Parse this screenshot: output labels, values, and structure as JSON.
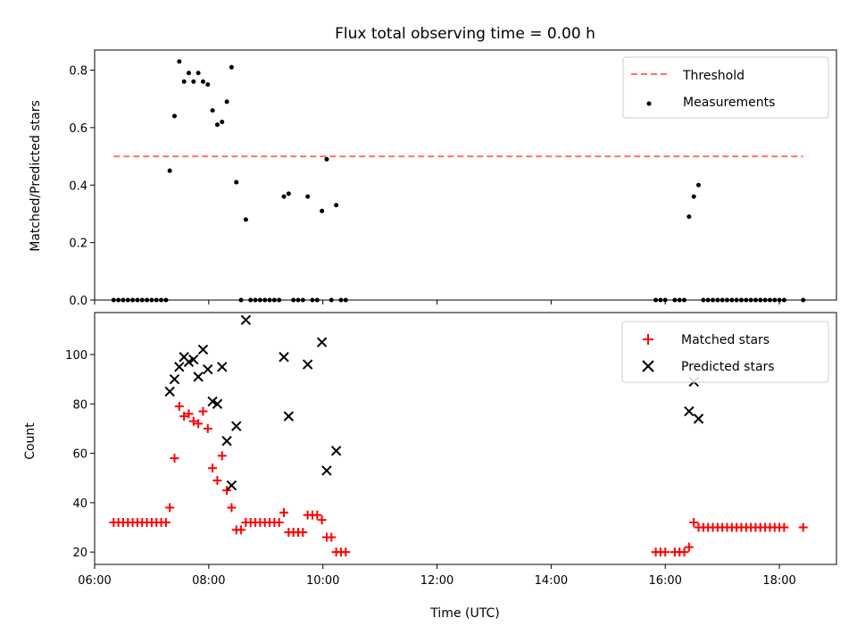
{
  "chart_data": [
    {
      "type": "scatter",
      "title": "Flux total observing time = 0.00 h",
      "xlabel": "",
      "ylabel": "Matched/Predicted stars",
      "xlim": [
        "06:00",
        "19:00"
      ],
      "ylim": [
        0,
        0.87
      ],
      "yticks": [
        "0.0",
        "0.2",
        "0.4",
        "0.6",
        "0.8"
      ],
      "yticks_values": [
        0,
        0.2,
        0.4,
        0.6,
        0.8
      ],
      "xticks_values": [
        "06:00",
        "08:00",
        "10:00",
        "12:00",
        "14:00",
        "16:00",
        "18:00"
      ],
      "legend_position": "top-right",
      "threshold": {
        "name": "Threshold",
        "value": 0.5,
        "x": [
          "06:20",
          "18:25"
        ],
        "color": "#ff7070"
      },
      "series": [
        {
          "name": "Measurements",
          "color": "#000000",
          "points": [
            [
              "06:20",
              0
            ],
            [
              "06:25",
              0
            ],
            [
              "06:30",
              0
            ],
            [
              "06:35",
              0
            ],
            [
              "06:40",
              0
            ],
            [
              "06:45",
              0
            ],
            [
              "06:50",
              0
            ],
            [
              "06:55",
              0
            ],
            [
              "07:00",
              0
            ],
            [
              "07:05",
              0
            ],
            [
              "07:10",
              0
            ],
            [
              "07:15",
              0
            ],
            [
              "07:19",
              0.45
            ],
            [
              "07:24",
              0.64
            ],
            [
              "07:29",
              0.83
            ],
            [
              "07:34",
              0.76
            ],
            [
              "07:39",
              0.79
            ],
            [
              "07:44",
              0.76
            ],
            [
              "07:49",
              0.79
            ],
            [
              "07:54",
              0.76
            ],
            [
              "07:59",
              0.75
            ],
            [
              "08:04",
              0.66
            ],
            [
              "08:09",
              0.61
            ],
            [
              "08:14",
              0.62
            ],
            [
              "08:19",
              0.69
            ],
            [
              "08:24",
              0.81
            ],
            [
              "08:29",
              0.41
            ],
            [
              "08:34",
              0
            ],
            [
              "08:39",
              0.28
            ],
            [
              "08:44",
              0
            ],
            [
              "08:49",
              0
            ],
            [
              "08:54",
              0
            ],
            [
              "08:59",
              0
            ],
            [
              "09:04",
              0
            ],
            [
              "09:09",
              0
            ],
            [
              "09:14",
              0
            ],
            [
              "09:19",
              0.36
            ],
            [
              "09:24",
              0.37
            ],
            [
              "09:29",
              0
            ],
            [
              "09:34",
              0
            ],
            [
              "09:39",
              0
            ],
            [
              "09:44",
              0.36
            ],
            [
              "09:49",
              0
            ],
            [
              "09:54",
              0
            ],
            [
              "09:59",
              0.31
            ],
            [
              "10:04",
              0.49
            ],
            [
              "10:09",
              0
            ],
            [
              "10:14",
              0.33
            ],
            [
              "10:19",
              0
            ],
            [
              "10:24",
              0
            ],
            [
              "15:50",
              0
            ],
            [
              "15:55",
              0
            ],
            [
              "16:00",
              0
            ],
            [
              "16:10",
              0
            ],
            [
              "16:15",
              0
            ],
            [
              "16:20",
              0
            ],
            [
              "16:25",
              0.29
            ],
            [
              "16:30",
              0.36
            ],
            [
              "16:35",
              0.4
            ],
            [
              "16:40",
              0
            ],
            [
              "16:45",
              0
            ],
            [
              "16:50",
              0
            ],
            [
              "16:55",
              0
            ],
            [
              "17:00",
              0
            ],
            [
              "17:05",
              0
            ],
            [
              "17:10",
              0
            ],
            [
              "17:15",
              0
            ],
            [
              "17:20",
              0
            ],
            [
              "17:25",
              0
            ],
            [
              "17:30",
              0
            ],
            [
              "17:35",
              0
            ],
            [
              "17:40",
              0
            ],
            [
              "17:45",
              0
            ],
            [
              "17:50",
              0
            ],
            [
              "17:55",
              0
            ],
            [
              "18:00",
              0
            ],
            [
              "18:05",
              0
            ],
            [
              "18:25",
              0
            ]
          ]
        }
      ]
    },
    {
      "type": "scatter",
      "title": "",
      "xlabel": "Time (UTC)",
      "ylabel": "Count",
      "xlim": [
        "06:00",
        "19:00"
      ],
      "ylim": [
        15,
        117
      ],
      "yticks": [
        "20",
        "40",
        "60",
        "80",
        "100"
      ],
      "yticks_values": [
        20,
        40,
        60,
        80,
        100
      ],
      "xticks": [
        "06:00",
        "08:00",
        "10:00",
        "12:00",
        "14:00",
        "16:00",
        "18:00"
      ],
      "legend_position": "top-right",
      "series": [
        {
          "name": "Matched stars",
          "marker": "+",
          "color": "#ff0000",
          "points": [
            [
              "06:20",
              32
            ],
            [
              "06:25",
              32
            ],
            [
              "06:30",
              32
            ],
            [
              "06:35",
              32
            ],
            [
              "06:40",
              32
            ],
            [
              "06:45",
              32
            ],
            [
              "06:50",
              32
            ],
            [
              "06:55",
              32
            ],
            [
              "07:00",
              32
            ],
            [
              "07:05",
              32
            ],
            [
              "07:10",
              32
            ],
            [
              "07:15",
              32
            ],
            [
              "07:19",
              38
            ],
            [
              "07:24",
              58
            ],
            [
              "07:29",
              79
            ],
            [
              "07:34",
              75
            ],
            [
              "07:39",
              76
            ],
            [
              "07:44",
              73
            ],
            [
              "07:49",
              72
            ],
            [
              "07:54",
              77
            ],
            [
              "07:59",
              70
            ],
            [
              "08:04",
              54
            ],
            [
              "08:09",
              49
            ],
            [
              "08:14",
              59
            ],
            [
              "08:19",
              45
            ],
            [
              "08:24",
              38
            ],
            [
              "08:29",
              29
            ],
            [
              "08:34",
              29
            ],
            [
              "08:39",
              32
            ],
            [
              "08:44",
              32
            ],
            [
              "08:49",
              32
            ],
            [
              "08:54",
              32
            ],
            [
              "08:59",
              32
            ],
            [
              "09:04",
              32
            ],
            [
              "09:09",
              32
            ],
            [
              "09:14",
              32
            ],
            [
              "09:19",
              36
            ],
            [
              "09:24",
              28
            ],
            [
              "09:29",
              28
            ],
            [
              "09:34",
              28
            ],
            [
              "09:39",
              28
            ],
            [
              "09:44",
              35
            ],
            [
              "09:49",
              35
            ],
            [
              "09:54",
              35
            ],
            [
              "09:59",
              33
            ],
            [
              "10:04",
              26
            ],
            [
              "10:09",
              26
            ],
            [
              "10:14",
              20
            ],
            [
              "10:19",
              20
            ],
            [
              "10:24",
              20
            ],
            [
              "15:50",
              20
            ],
            [
              "15:55",
              20
            ],
            [
              "16:00",
              20
            ],
            [
              "16:10",
              20
            ],
            [
              "16:15",
              20
            ],
            [
              "16:20",
              20
            ],
            [
              "16:25",
              22
            ],
            [
              "16:30",
              32
            ],
            [
              "16:35",
              30
            ],
            [
              "16:40",
              30
            ],
            [
              "16:45",
              30
            ],
            [
              "16:50",
              30
            ],
            [
              "16:55",
              30
            ],
            [
              "17:00",
              30
            ],
            [
              "17:05",
              30
            ],
            [
              "17:10",
              30
            ],
            [
              "17:15",
              30
            ],
            [
              "17:20",
              30
            ],
            [
              "17:25",
              30
            ],
            [
              "17:30",
              30
            ],
            [
              "17:35",
              30
            ],
            [
              "17:40",
              30
            ],
            [
              "17:45",
              30
            ],
            [
              "17:50",
              30
            ],
            [
              "17:55",
              30
            ],
            [
              "18:00",
              30
            ],
            [
              "18:05",
              30
            ],
            [
              "18:25",
              30
            ]
          ]
        },
        {
          "name": "Predicted stars",
          "marker": "x",
          "color": "#000000",
          "points": [
            [
              "07:19",
              85
            ],
            [
              "07:24",
              90
            ],
            [
              "07:29",
              95
            ],
            [
              "07:34",
              99
            ],
            [
              "07:39",
              97
            ],
            [
              "07:44",
              98
            ],
            [
              "07:49",
              91
            ],
            [
              "07:54",
              102
            ],
            [
              "07:59",
              94
            ],
            [
              "08:04",
              81
            ],
            [
              "08:09",
              80
            ],
            [
              "08:14",
              95
            ],
            [
              "08:19",
              65
            ],
            [
              "08:24",
              47
            ],
            [
              "08:29",
              71
            ],
            [
              "08:39",
              114
            ],
            [
              "09:19",
              99
            ],
            [
              "09:24",
              75
            ],
            [
              "09:44",
              96
            ],
            [
              "09:59",
              105
            ],
            [
              "10:04",
              53
            ],
            [
              "10:14",
              61
            ],
            [
              "16:25",
              77
            ],
            [
              "16:30",
              89
            ],
            [
              "16:35",
              74
            ]
          ]
        }
      ]
    }
  ]
}
